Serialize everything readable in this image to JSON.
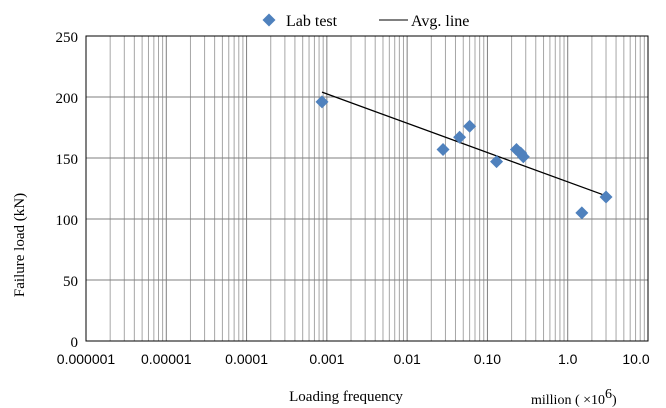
{
  "chart_data": {
    "type": "scatter",
    "xscale": "log",
    "xlim": [
      1e-06,
      10
    ],
    "ylim": [
      0,
      250
    ],
    "xlabel": "Loading frequency",
    "xlabel_unit": "million ( ×10",
    "xlabel_unit_exp": "6",
    "xlabel_unit_close": ")",
    "ylabel": "Failure load (kN)",
    "x_ticks": [
      1e-06,
      1e-05,
      0.0001,
      0.001,
      0.01,
      0.1,
      1,
      10
    ],
    "x_tick_labels": [
      "0.000001",
      "0.00001",
      "0.0001",
      "0.001",
      "0.01",
      "0.10",
      "1.0",
      "10.0"
    ],
    "y_ticks": [
      0,
      50,
      100,
      150,
      200,
      250
    ],
    "y_tick_labels": [
      "0",
      "50",
      "100",
      "150",
      "200",
      "250"
    ],
    "grid": true,
    "legend_position": "top",
    "series": [
      {
        "name": "Lab test",
        "marker": "diamond",
        "color": "#4F81BD",
        "points": [
          {
            "x": 0.00087,
            "y": 196
          },
          {
            "x": 0.028,
            "y": 157
          },
          {
            "x": 0.045,
            "y": 167
          },
          {
            "x": 0.06,
            "y": 176
          },
          {
            "x": 0.13,
            "y": 147
          },
          {
            "x": 0.23,
            "y": 157
          },
          {
            "x": 0.26,
            "y": 154
          },
          {
            "x": 0.28,
            "y": 151
          },
          {
            "x": 1.5,
            "y": 105
          },
          {
            "x": 3.0,
            "y": 118
          }
        ]
      },
      {
        "name": "Avg. line",
        "style": "line",
        "color": "#000000",
        "points": [
          {
            "x": 0.00087,
            "y": 204
          },
          {
            "x": 3.0,
            "y": 119
          }
        ]
      }
    ]
  }
}
